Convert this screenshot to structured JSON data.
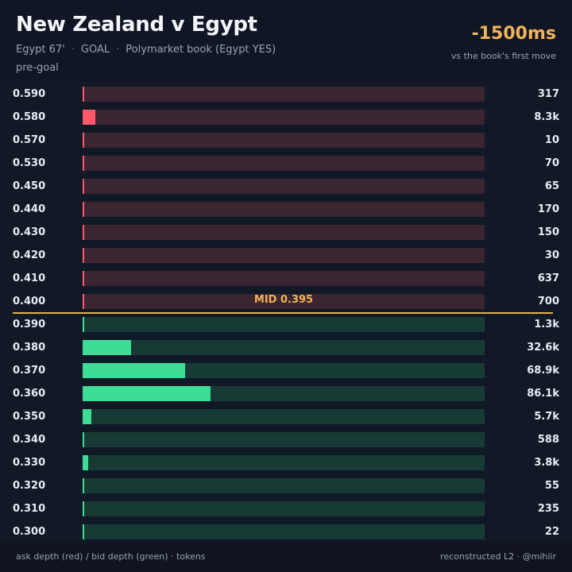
{
  "header": {
    "title": "New Zealand v Egypt",
    "minute": "Egypt 67'",
    "event": "GOAL",
    "market": "Polymarket book (Egypt YES)",
    "phase": "pre-goal",
    "latency": "-1500ms",
    "latency_note": "vs the book's first move"
  },
  "footer": {
    "legend": "ask depth (red) / bid depth (green) · tokens",
    "credit": "reconstructed L2 · @mihiir"
  },
  "colors": {
    "ask": "#ff5a6b",
    "ask_track": "#3a2530",
    "bid": "#3ddc97",
    "bid_track": "#173a35",
    "mid": "#e0b24f",
    "background": "#0f1420"
  },
  "chart_data": {
    "type": "bar",
    "orientation": "horizontal",
    "mid_label": "MID 0.395",
    "mid": 0.395,
    "xlim": [
      0,
      270000
    ],
    "asks": [
      {
        "price": "0.590",
        "size": 317,
        "size_label": "317"
      },
      {
        "price": "0.580",
        "size": 8300,
        "size_label": "8.3k"
      },
      {
        "price": "0.570",
        "size": 10,
        "size_label": "10"
      },
      {
        "price": "0.530",
        "size": 70,
        "size_label": "70"
      },
      {
        "price": "0.450",
        "size": 65,
        "size_label": "65"
      },
      {
        "price": "0.440",
        "size": 170,
        "size_label": "170"
      },
      {
        "price": "0.430",
        "size": 150,
        "size_label": "150"
      },
      {
        "price": "0.420",
        "size": 30,
        "size_label": "30"
      },
      {
        "price": "0.410",
        "size": 637,
        "size_label": "637"
      },
      {
        "price": "0.400",
        "size": 700,
        "size_label": "700"
      }
    ],
    "bids": [
      {
        "price": "0.390",
        "size": 1300,
        "size_label": "1.3k"
      },
      {
        "price": "0.380",
        "size": 32600,
        "size_label": "32.6k"
      },
      {
        "price": "0.370",
        "size": 68900,
        "size_label": "68.9k"
      },
      {
        "price": "0.360",
        "size": 86100,
        "size_label": "86.1k"
      },
      {
        "price": "0.350",
        "size": 5700,
        "size_label": "5.7k"
      },
      {
        "price": "0.340",
        "size": 588,
        "size_label": "588"
      },
      {
        "price": "0.330",
        "size": 3800,
        "size_label": "3.8k"
      },
      {
        "price": "0.320",
        "size": 55,
        "size_label": "55"
      },
      {
        "price": "0.310",
        "size": 235,
        "size_label": "235"
      },
      {
        "price": "0.300",
        "size": 22,
        "size_label": "22"
      }
    ]
  }
}
